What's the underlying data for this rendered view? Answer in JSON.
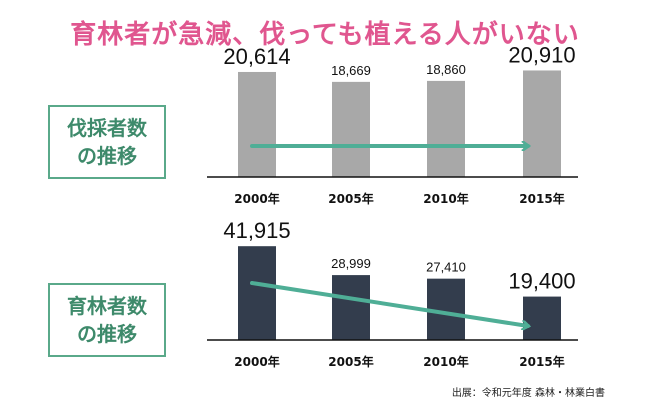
{
  "title": "育林者が急減、伐っても植える人がいない",
  "source": "出展：令和元年度 森林・林業白書",
  "charts": [
    {
      "label_lines": [
        "伐採者数",
        "の推移"
      ]
    },
    {
      "label_lines": [
        "育林者数",
        "の推移"
      ]
    }
  ],
  "chart_data": [
    {
      "type": "bar",
      "title": "伐採者数の推移",
      "categories": [
        "2000年",
        "2005年",
        "2010年",
        "2015年"
      ],
      "values": [
        20614,
        18669,
        18860,
        20910
      ],
      "value_labels": [
        "20,614",
        "18,669",
        "18,860",
        "20,910"
      ],
      "bar_color": "#a8a8a8",
      "arrow_color": "#4fae96",
      "ylim": [
        0,
        21000
      ]
    },
    {
      "type": "bar",
      "title": "育林者数の推移",
      "categories": [
        "2000年",
        "2005年",
        "2010年",
        "2015年"
      ],
      "values": [
        41915,
        28999,
        27410,
        19400
      ],
      "value_labels": [
        "41,915",
        "28,999",
        "27,410",
        "19,400"
      ],
      "bar_color": "#333d4d",
      "arrow_color": "#4fae96",
      "ylim": [
        0,
        42000
      ]
    }
  ]
}
